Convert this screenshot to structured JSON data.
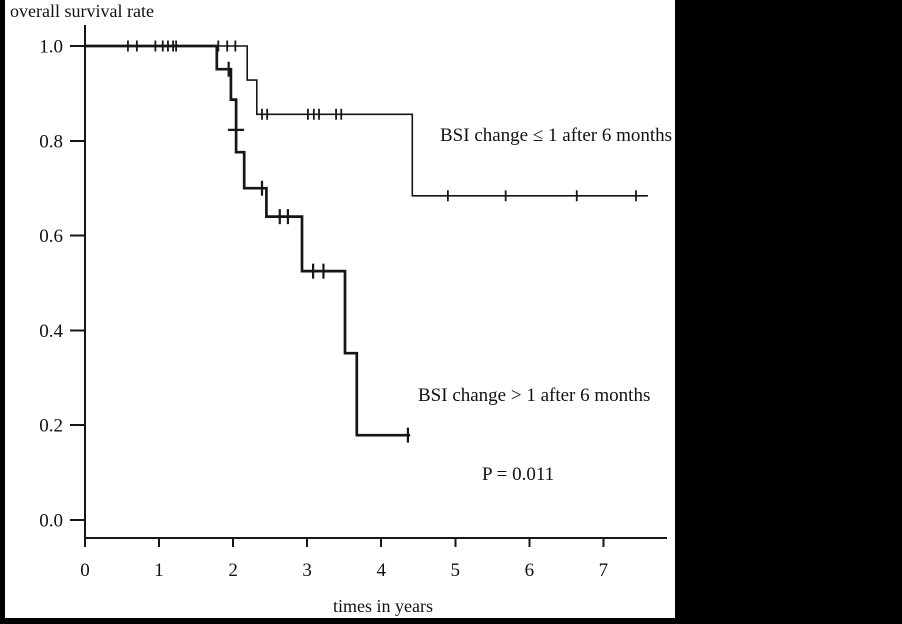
{
  "colors": {
    "curve": "#161616",
    "background": "#ffffff",
    "frame": "#000000",
    "text": "#111111"
  },
  "chart_data": {
    "type": "line",
    "subtype": "kaplan-meier-step",
    "title": "overall survival rate",
    "xlabel": "times in years",
    "ylabel": "",
    "xlim": [
      0,
      7.85
    ],
    "ylim": [
      0.0,
      1.0
    ],
    "x_ticks": [
      0,
      1,
      2,
      3,
      4,
      5,
      6,
      7
    ],
    "y_ticks": [
      1.0,
      0.8,
      0.6,
      0.4,
      0.2,
      0.0
    ],
    "grid": false,
    "legend_position": "inline-annotations",
    "p_value_text": "P = 0.011",
    "series": [
      {
        "name": "BSI change ≤ 1 after 6 months",
        "line_weight": "thin",
        "steps": [
          [
            0,
            1.0
          ],
          [
            2.19,
            1.0
          ],
          [
            2.19,
            0.928
          ],
          [
            2.32,
            0.928
          ],
          [
            2.32,
            0.856
          ],
          [
            4.42,
            0.856
          ],
          [
            4.42,
            0.684
          ],
          [
            7.6,
            0.684
          ]
        ],
        "censor_marks": [
          [
            0.58,
            1.0
          ],
          [
            0.7,
            1.0
          ],
          [
            0.95,
            1.0
          ],
          [
            1.05,
            1.0
          ],
          [
            1.12,
            1.0
          ],
          [
            1.19,
            1.0
          ],
          [
            1.23,
            1.0
          ],
          [
            1.8,
            1.0
          ],
          [
            1.92,
            1.0
          ],
          [
            2.03,
            1.0
          ],
          [
            2.39,
            0.856
          ],
          [
            2.46,
            0.856
          ],
          [
            3.01,
            0.856
          ],
          [
            3.09,
            0.856
          ],
          [
            3.16,
            0.856
          ],
          [
            3.39,
            0.856
          ],
          [
            3.46,
            0.856
          ],
          [
            4.9,
            0.684
          ],
          [
            5.68,
            0.684
          ],
          [
            6.64,
            0.684
          ],
          [
            7.44,
            0.684
          ]
        ]
      },
      {
        "name": "BSI change > 1 after 6 months",
        "line_weight": "thick",
        "steps": [
          [
            0,
            1.0
          ],
          [
            1.78,
            1.0
          ],
          [
            1.78,
            0.951
          ],
          [
            1.97,
            0.951
          ],
          [
            1.97,
            0.887
          ],
          [
            2.04,
            0.887
          ],
          [
            2.04,
            0.776
          ],
          [
            2.15,
            0.776
          ],
          [
            2.15,
            0.7
          ],
          [
            2.45,
            0.7
          ],
          [
            2.45,
            0.64
          ],
          [
            2.93,
            0.64
          ],
          [
            2.93,
            0.525
          ],
          [
            3.51,
            0.525
          ],
          [
            3.51,
            0.352
          ],
          [
            3.67,
            0.352
          ],
          [
            3.67,
            0.179
          ],
          [
            4.39,
            0.179
          ]
        ],
        "censor_marks": [
          [
            1.94,
            0.951
          ],
          [
            2.04,
            0.823,
            "h"
          ],
          [
            2.39,
            0.7
          ],
          [
            2.63,
            0.64
          ],
          [
            2.74,
            0.64
          ],
          [
            3.08,
            0.525
          ],
          [
            3.22,
            0.525
          ],
          [
            4.36,
            0.179
          ]
        ]
      }
    ]
  }
}
